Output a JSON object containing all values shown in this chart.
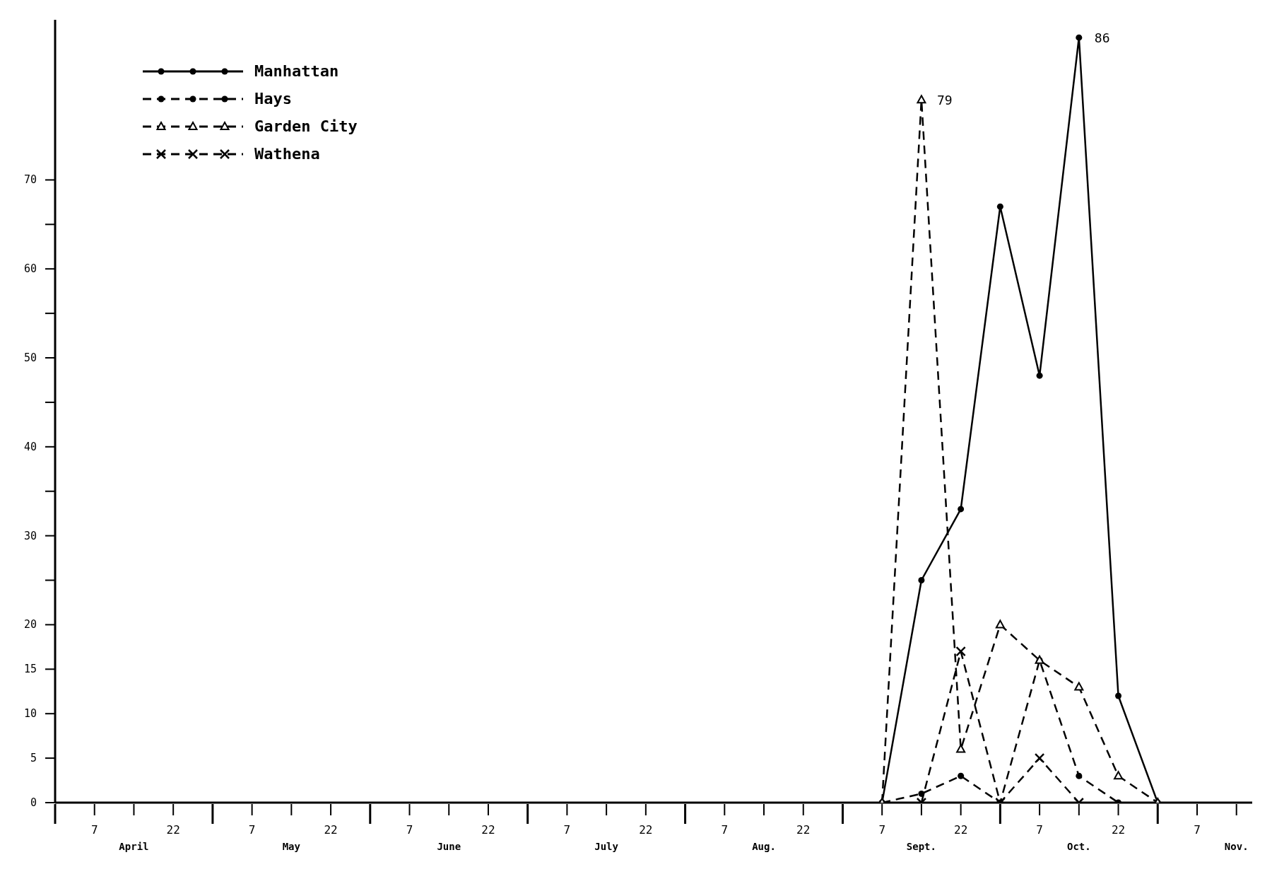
{
  "chart_data": {
    "type": "line",
    "categories": [
      null,
      "7",
      null,
      "22",
      null,
      "7",
      null,
      "22",
      null,
      "7",
      null,
      "22",
      null,
      "7",
      null,
      "22",
      null,
      "7",
      null,
      "22",
      null,
      "7",
      null,
      "22",
      null,
      "7",
      null,
      "22",
      null,
      "7",
      null
    ],
    "ylim": [
      0,
      88
    ],
    "yticks": [
      0,
      5,
      10,
      15,
      20,
      {
        "value": 25,
        "label": null
      },
      30,
      {
        "value": 35,
        "label": null
      },
      40,
      {
        "value": 45,
        "label": null
      },
      50,
      {
        "value": 55,
        "label": null
      },
      60,
      {
        "value": 65,
        "label": null
      },
      70
    ],
    "legend": "top left",
    "series": [
      {
        "name": "Manhattan",
        "color": "#000000",
        "line_style": "solid",
        "marker": "circle",
        "values": [
          null,
          null,
          null,
          null,
          null,
          null,
          null,
          null,
          null,
          null,
          null,
          null,
          null,
          null,
          null,
          null,
          null,
          null,
          null,
          null,
          null,
          0,
          25,
          33,
          67,
          48,
          86,
          12,
          0,
          null,
          null
        ]
      },
      {
        "name": "Hays",
        "color": "#000000",
        "line_style": "dashed",
        "marker": "circle",
        "values": [
          null,
          null,
          null,
          null,
          null,
          null,
          null,
          null,
          null,
          null,
          null,
          null,
          null,
          null,
          null,
          null,
          null,
          null,
          null,
          null,
          null,
          0,
          1,
          3,
          0,
          16,
          3,
          0,
          null,
          null,
          null
        ]
      },
      {
        "name": "Garden City",
        "color": "#000000",
        "line_style": "dashed",
        "marker": "triangle",
        "values": [
          null,
          null,
          null,
          null,
          null,
          null,
          null,
          null,
          null,
          null,
          null,
          null,
          null,
          null,
          null,
          null,
          null,
          null,
          null,
          null,
          null,
          0,
          79,
          6,
          20,
          16,
          13,
          3,
          0,
          null,
          null
        ]
      },
      {
        "name": "Wathena",
        "color": "#000000",
        "line_style": "dashed",
        "marker": "cross",
        "values": [
          null,
          null,
          null,
          null,
          null,
          null,
          null,
          null,
          null,
          null,
          null,
          null,
          null,
          null,
          null,
          null,
          null,
          null,
          null,
          null,
          null,
          null,
          0,
          17,
          0,
          5,
          0,
          null,
          null,
          null,
          null
        ]
      }
    ],
    "annotations": [
      "April",
      "May",
      "June",
      "July",
      "Aug.",
      "Sept.",
      "Oct.",
      "Nov.",
      "79",
      "86"
    ]
  }
}
